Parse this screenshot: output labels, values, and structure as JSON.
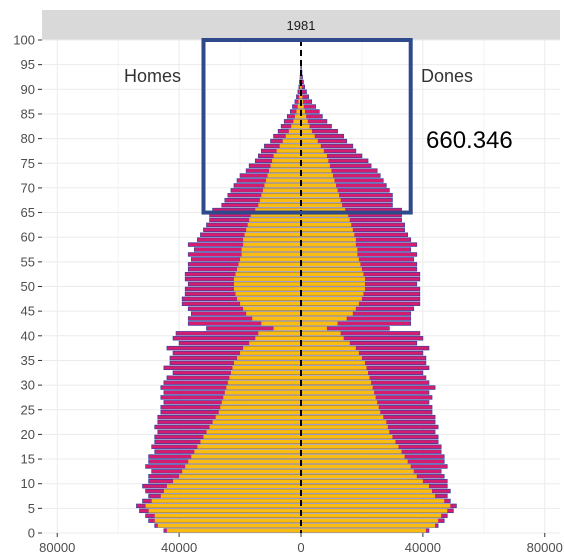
{
  "chart_data": {
    "type": "bar",
    "subtype": "population-pyramid",
    "facet_title": "1981",
    "left_label": "Homes",
    "right_label": "Dones",
    "annotation": "660.346",
    "highlight": {
      "age_range": [
        65,
        100
      ],
      "value_range": [
        -32000,
        36000
      ],
      "color": "#2e4a8a"
    },
    "xlim": [
      -85000,
      85000
    ],
    "ylim": [
      0,
      100
    ],
    "x_ticks": [
      -80000,
      -40000,
      0,
      40000,
      80000
    ],
    "x_tick_labels": [
      "80000",
      "40000",
      "0",
      "40000",
      "80000"
    ],
    "y_ticks": [
      0,
      5,
      10,
      15,
      20,
      25,
      30,
      35,
      40,
      45,
      50,
      55,
      60,
      65,
      70,
      75,
      80,
      85,
      90,
      95,
      100
    ],
    "y_tick_labels": [
      "0",
      "5",
      "10",
      "15",
      "20",
      "25",
      "30",
      "35",
      "40",
      "45",
      "50",
      "55",
      "60",
      "65",
      "70",
      "75",
      "80",
      "85",
      "90",
      "95",
      "100"
    ],
    "grid": true,
    "colors": {
      "outer": "#d61c6e",
      "inner": "#f9bc0f",
      "outline": "#3a3f9e",
      "zero_line": "#000000",
      "strip": "#d9d9d9"
    },
    "ages": [
      0,
      1,
      2,
      3,
      4,
      5,
      6,
      7,
      8,
      9,
      10,
      11,
      12,
      13,
      14,
      15,
      16,
      17,
      18,
      19,
      20,
      21,
      22,
      23,
      24,
      25,
      26,
      27,
      28,
      29,
      30,
      31,
      32,
      33,
      34,
      35,
      36,
      37,
      38,
      39,
      40,
      41,
      42,
      43,
      44,
      45,
      46,
      47,
      48,
      49,
      50,
      51,
      52,
      53,
      54,
      55,
      56,
      57,
      58,
      59,
      60,
      61,
      62,
      63,
      64,
      65,
      66,
      67,
      68,
      69,
      70,
      71,
      72,
      73,
      74,
      75,
      76,
      77,
      78,
      79,
      80,
      81,
      82,
      83,
      84,
      85,
      86,
      87,
      88,
      89,
      90,
      91,
      92,
      93,
      94,
      95
    ],
    "series": [
      {
        "name": "Homes",
        "values": [
          -45000,
          -48000,
          -50000,
          -51000,
          -53000,
          -54000,
          -52000,
          -50000,
          -51000,
          -52000,
          -50000,
          -50000,
          -49000,
          -51000,
          -50000,
          -50000,
          -48000,
          -49000,
          -48000,
          -48000,
          -47000,
          -48000,
          -47000,
          -47000,
          -46000,
          -46000,
          -45000,
          -46000,
          -45000,
          -46000,
          -45000,
          -44000,
          -42000,
          -45000,
          -43000,
          -43000,
          -42000,
          -44000,
          -40000,
          -42000,
          -41000,
          -31000,
          -37000,
          -37000,
          -36000,
          -37000,
          -39000,
          -39000,
          -38000,
          -38000,
          -37000,
          -38000,
          -38000,
          -37000,
          -37000,
          -36000,
          -37000,
          -35000,
          -37000,
          -34000,
          -33000,
          -32000,
          -31000,
          -30000,
          -30000,
          -29000,
          -26000,
          -25000,
          -24000,
          -23000,
          -22000,
          -21000,
          -20000,
          -18000,
          -17000,
          -15000,
          -14000,
          -13000,
          -12000,
          -10000,
          -9000,
          -7500,
          -6500,
          -5500,
          -4500,
          -3500,
          -2800,
          -2000,
          -1500,
          -1000,
          -700,
          -500,
          -300,
          -200,
          -120,
          -80
        ]
      },
      {
        "name": "Dones",
        "values": [
          42000,
          45000,
          47000,
          48000,
          50000,
          51000,
          49000,
          48000,
          49000,
          48000,
          48000,
          47000,
          46000,
          48000,
          47000,
          47000,
          46000,
          46000,
          45000,
          45000,
          44000,
          45000,
          44000,
          44000,
          43000,
          43000,
          42000,
          43000,
          42000,
          44000,
          42000,
          41000,
          40000,
          42000,
          41000,
          41000,
          40000,
          42000,
          38000,
          40000,
          39000,
          29000,
          36000,
          36000,
          36000,
          37000,
          39000,
          39000,
          39000,
          39000,
          38000,
          39000,
          39000,
          38000,
          38000,
          37000,
          38000,
          36000,
          38000,
          36000,
          35000,
          34000,
          34000,
          33000,
          33000,
          33000,
          30000,
          30000,
          30000,
          29000,
          28000,
          27000,
          26000,
          25000,
          23000,
          22000,
          20000,
          18000,
          17000,
          15000,
          14000,
          12000,
          10000,
          8500,
          7000,
          6000,
          4800,
          3500,
          2500,
          1800,
          1200,
          800,
          500,
          300,
          180,
          100
        ]
      },
      {
        "name": "Homes-inner",
        "values": [
          -44000,
          -47000,
          -48000,
          -48000,
          -50000,
          -51000,
          -49000,
          -46000,
          -45000,
          -44000,
          -42000,
          -40000,
          -39000,
          -38000,
          -37000,
          -36000,
          -35000,
          -34000,
          -33000,
          -32000,
          -31000,
          -30000,
          -29000,
          -28000,
          -27000,
          -26500,
          -26000,
          -25500,
          -25000,
          -24500,
          -24000,
          -23500,
          -23000,
          -22500,
          -22000,
          -21000,
          -20000,
          -19000,
          -17000,
          -15000,
          -14000,
          -9000,
          -13000,
          -16000,
          -18000,
          -19000,
          -20000,
          -21000,
          -21500,
          -22000,
          -22000,
          -22000,
          -21500,
          -21000,
          -20500,
          -20000,
          -19500,
          -19500,
          -19000,
          -19000,
          -18500,
          -18000,
          -17500,
          -17000,
          -16500,
          -15000,
          -14000,
          -13500,
          -13000,
          -12500,
          -12000,
          -11500,
          -11000,
          -10500,
          -10000,
          -9500,
          -9000,
          -8000,
          -7000,
          -6000,
          -5000,
          -4000,
          -3200,
          -2500,
          -2000,
          -1500,
          -1100,
          -800,
          -600,
          -400,
          -300,
          -200,
          -120,
          -80,
          -50,
          -30
        ]
      },
      {
        "name": "Dones-inner",
        "values": [
          41000,
          44000,
          45000,
          46000,
          48000,
          49000,
          47000,
          44000,
          43000,
          42000,
          40000,
          38000,
          37000,
          36000,
          35000,
          34000,
          33000,
          32000,
          31000,
          30000,
          29000,
          28500,
          28000,
          27000,
          26000,
          25500,
          25000,
          24500,
          24000,
          23500,
          23000,
          22500,
          22000,
          21500,
          21000,
          20000,
          19000,
          18000,
          16000,
          14000,
          13000,
          8500,
          12000,
          15000,
          17000,
          18000,
          19000,
          20000,
          20500,
          21000,
          21000,
          21000,
          20500,
          20000,
          19500,
          19000,
          18500,
          18500,
          18000,
          18000,
          17500,
          17000,
          16500,
          16000,
          15500,
          14500,
          13500,
          13000,
          12500,
          12000,
          11500,
          11000,
          10500,
          10000,
          9500,
          9000,
          8500,
          7500,
          6500,
          5500,
          4500,
          3600,
          2800,
          2200,
          1700,
          1300,
          900,
          650,
          450,
          300,
          220,
          150,
          100,
          60,
          40,
          20
        ]
      }
    ]
  }
}
